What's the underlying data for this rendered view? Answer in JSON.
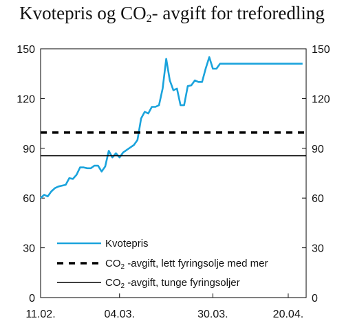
{
  "chart_data": {
    "type": "line",
    "title": "Kvotepris og CO",
    "title_sub": "2",
    "title_tail": "- avgift for treforedling",
    "xlabel": "",
    "ylabel": "",
    "ylim": [
      0,
      150
    ],
    "yticks": [
      0,
      30,
      60,
      90,
      120,
      150
    ],
    "xtick_labels": [
      {
        "label": "11.02.",
        "date": "2008-02-11"
      },
      {
        "label": "04.03.",
        "date": "2008-03-04"
      },
      {
        "label": "30.03.",
        "date": "2008-03-30"
      },
      {
        "label": "20.04.",
        "date": "2008-04-20"
      }
    ],
    "xlim": [
      "2008-02-11",
      "2008-04-25"
    ],
    "grid": false,
    "legend_position": "lower-left",
    "series": [
      {
        "name": "Kvotepris",
        "color": "#1aa3dc",
        "style": "solid",
        "x": [
          "2008-02-11",
          "2008-02-12",
          "2008-02-13",
          "2008-02-14",
          "2008-02-15",
          "2008-02-16",
          "2008-02-17",
          "2008-02-18",
          "2008-02-19",
          "2008-02-20",
          "2008-02-21",
          "2008-02-22",
          "2008-02-23",
          "2008-02-24",
          "2008-02-25",
          "2008-02-26",
          "2008-02-27",
          "2008-02-28",
          "2008-02-29",
          "2008-03-01",
          "2008-03-02",
          "2008-03-03",
          "2008-03-04",
          "2008-03-05",
          "2008-03-06",
          "2008-03-07",
          "2008-03-08",
          "2008-03-09",
          "2008-03-10",
          "2008-03-11",
          "2008-03-12",
          "2008-03-13",
          "2008-03-14",
          "2008-03-15",
          "2008-03-16",
          "2008-03-17",
          "2008-03-18",
          "2008-03-19",
          "2008-03-20",
          "2008-03-21",
          "2008-03-22",
          "2008-03-23",
          "2008-03-24",
          "2008-03-25",
          "2008-03-26",
          "2008-03-27",
          "2008-03-28",
          "2008-03-29",
          "2008-03-30",
          "2008-03-31",
          "2008-04-01",
          "2008-04-02",
          "2008-04-03",
          "2008-04-04",
          "2008-04-05",
          "2008-04-06",
          "2008-04-07",
          "2008-04-08",
          "2008-04-09",
          "2008-04-10",
          "2008-04-11",
          "2008-04-12",
          "2008-04-13",
          "2008-04-14",
          "2008-04-15",
          "2008-04-16",
          "2008-04-17",
          "2008-04-18",
          "2008-04-19",
          "2008-04-20",
          "2008-04-21",
          "2008-04-22",
          "2008-04-23",
          "2008-04-24"
        ],
        "values": [
          60,
          62,
          61,
          64,
          66,
          67,
          67.5,
          68,
          72,
          71.5,
          74,
          78.5,
          78.5,
          78,
          78,
          79.5,
          79.5,
          76,
          79,
          88.5,
          84.5,
          87,
          84.5,
          87.5,
          89,
          90.5,
          92,
          95,
          108,
          112,
          111,
          115,
          115,
          116,
          126,
          144,
          131,
          125,
          126,
          116,
          116,
          127.5,
          128,
          131,
          130,
          130,
          138,
          145,
          138,
          138,
          141,
          141,
          141,
          141,
          141,
          141,
          141,
          141,
          141,
          141,
          141,
          141,
          141,
          141,
          141,
          141,
          141,
          141,
          141,
          141,
          141,
          141,
          141,
          141
        ]
      },
      {
        "name": "CO2 -avgift, lett fyringsolje med mer",
        "label_main": "CO",
        "label_sub": "2",
        "label_tail": " -avgift, lett fyringsolje med mer",
        "color": "#000000",
        "style": "dashed",
        "constant": 99.5
      },
      {
        "name": "CO2 -avgift, tunge fyringsoljer",
        "label_main": "CO",
        "label_sub": "2",
        "label_tail": " -avgift, tunge fyringsoljer",
        "color": "#000000",
        "style": "solid-thin",
        "constant": 85.5
      }
    ]
  }
}
